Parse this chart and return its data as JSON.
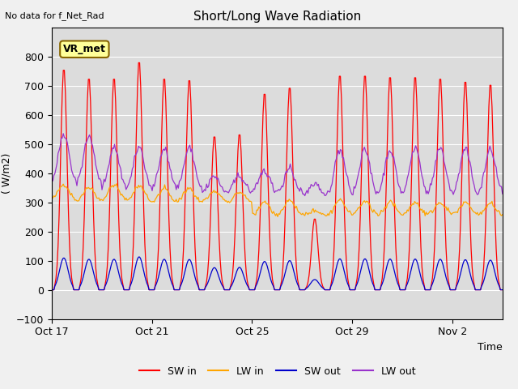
{
  "title": "Short/Long Wave Radiation",
  "xlabel": "Time",
  "ylabel": "( W/m2)",
  "top_left_text": "No data for f_Net_Rad",
  "legend_box_label": "VR_met",
  "ylim": [
    -100,
    900
  ],
  "yticks": [
    -100,
    0,
    100,
    200,
    300,
    400,
    500,
    600,
    700,
    800
  ],
  "xtick_labels": [
    "Oct 17",
    "Oct 21",
    "Oct 25",
    "Oct 29",
    "Nov 2"
  ],
  "colors": {
    "SW_in": "#ff0000",
    "LW_in": "#ffa500",
    "SW_out": "#0000cc",
    "LW_out": "#9933cc"
  },
  "plot_bg_color": "#dcdcdc",
  "fig_bg_color": "#f0f0f0",
  "n_days": 18
}
